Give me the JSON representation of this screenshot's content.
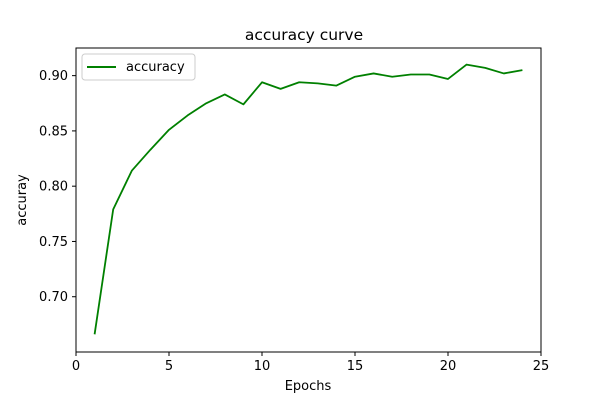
{
  "chart_data": {
    "type": "line",
    "title": "accuracy curve",
    "xlabel": "Epochs",
    "ylabel": "accuray",
    "xlim": [
      0,
      25
    ],
    "ylim": [
      0.65,
      0.925
    ],
    "xticks": [
      0,
      5,
      10,
      15,
      20,
      25
    ],
    "yticks": [
      "0.70",
      "0.75",
      "0.80",
      "0.85",
      "0.90"
    ],
    "grid": false,
    "legend": "upper-left",
    "series": [
      {
        "name": "accuracy",
        "color": "#008000",
        "x": [
          1,
          2,
          3,
          4,
          5,
          6,
          7,
          8,
          9,
          10,
          11,
          12,
          13,
          14,
          15,
          16,
          17,
          18,
          19,
          20,
          21,
          22,
          23,
          24
        ],
        "y": [
          0.666,
          0.779,
          0.814,
          0.833,
          0.851,
          0.864,
          0.875,
          0.883,
          0.874,
          0.894,
          0.888,
          0.894,
          0.893,
          0.891,
          0.899,
          0.902,
          0.899,
          0.901,
          0.901,
          0.897,
          0.91,
          0.907,
          0.902,
          0.905
        ]
      }
    ]
  }
}
